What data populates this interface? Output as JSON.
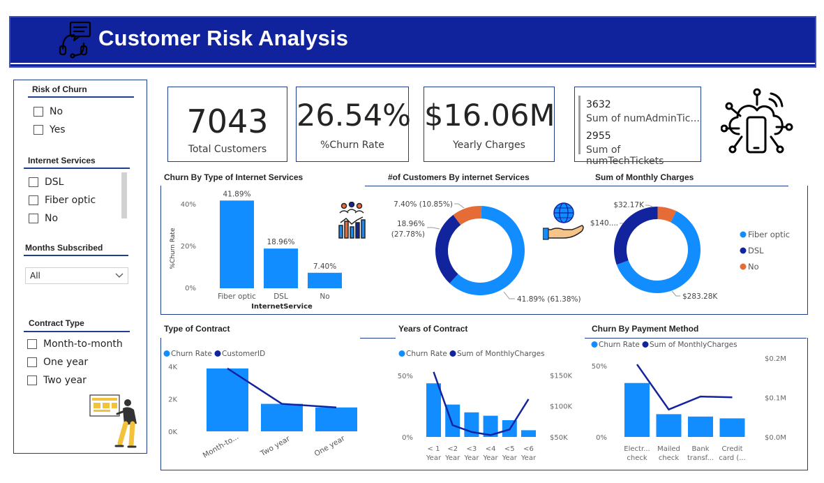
{
  "header": {
    "title": "Customer Risk Analysis",
    "bg_color": "#10239c",
    "icon": "support-headset-icon"
  },
  "slicers": {
    "risk_of_churn": {
      "title": "Risk of Churn",
      "options": [
        "No",
        "Yes"
      ]
    },
    "internet_services": {
      "title": "Internet Services",
      "options": [
        "DSL",
        "Fiber optic",
        "No"
      ]
    },
    "months_subscribed": {
      "title": "Months Subscribed",
      "selected": "All"
    },
    "contract_type": {
      "title": "Contract Type",
      "options": [
        "Month-to-month",
        "One year",
        "Two year"
      ]
    }
  },
  "kpis": {
    "total_customers": {
      "value": "7043",
      "label": "Total Customers"
    },
    "churn_rate": {
      "value": "26.54%",
      "label": "%Churn Rate"
    },
    "yearly_charges": {
      "value": "$16.06M",
      "label": "Yearly Charges"
    },
    "tickets": [
      {
        "value": "3632",
        "label": "Sum of numAdminTic..."
      },
      {
        "value": "2955",
        "label": "Sum of numTechTickets"
      }
    ]
  },
  "colors": {
    "primary": "#118dff",
    "secondary": "#12239e",
    "tertiary": "#e66c37",
    "border": "#1c3e8c"
  },
  "icons": {
    "cloud": "cloud-network-icon",
    "analytics": "analytics-team-icon",
    "globe_hand": "globe-hand-icon",
    "person": "person-pointing-icon"
  },
  "chart_data": [
    {
      "id": "churn_by_internet",
      "type": "bar",
      "title": "Churn By Type of Internet Services",
      "xlabel": "InternetService",
      "ylabel": "%Churn Rate",
      "categories": [
        "Fiber optic",
        "DSL",
        "No"
      ],
      "values": [
        41.89,
        18.96,
        7.4
      ],
      "data_labels": [
        "41.89%",
        "18.96%",
        "7.40%"
      ],
      "y_ticks": [
        "0%",
        "20%",
        "40%"
      ],
      "ylim": [
        0,
        45
      ]
    },
    {
      "id": "customers_by_internet",
      "type": "pie",
      "donut": true,
      "title": "#of Customers By internet Services",
      "slices": [
        {
          "name": "Fiber optic",
          "value": 41.89,
          "share": 61.38,
          "label": "41.89% (61.38%)"
        },
        {
          "name": "DSL",
          "value": 18.96,
          "share": 27.78,
          "label": "18.96% (27.78%)"
        },
        {
          "name": "No",
          "value": 7.4,
          "share": 10.85,
          "label": "7.40% (10.85%)"
        }
      ]
    },
    {
      "id": "monthly_charges",
      "type": "pie",
      "donut": true,
      "title": "Sum of Monthly Charges",
      "slices": [
        {
          "name": "Fiber optic",
          "value": 283.28,
          "label": "$283.28K"
        },
        {
          "name": "DSL",
          "value": 140.0,
          "label": "$140...."
        },
        {
          "name": "No",
          "value": 32.17,
          "label": "$32.17K"
        }
      ],
      "legend": [
        "Fiber optic",
        "DSL",
        "No"
      ],
      "legend_position": "right"
    },
    {
      "id": "type_of_contract",
      "type": "bar",
      "title": "Type of Contract",
      "categories": [
        "Month-to...",
        "Two year",
        "One year"
      ],
      "series": [
        {
          "name": "Churn Rate",
          "kind": "bar",
          "values": [
            3875,
            1695,
            1473
          ]
        },
        {
          "name": "CustomerID",
          "kind": "line",
          "values": [
            3875,
            1695,
            1473
          ]
        }
      ],
      "y_ticks": [
        "0K",
        "2K",
        "4K"
      ],
      "ylim": [
        0,
        4300
      ],
      "legend_position": "top-left"
    },
    {
      "id": "years_of_contract",
      "type": "bar",
      "title": "Years of Contract",
      "categories": [
        "< 1\nYear",
        "<2\nYear",
        "<3\nYear",
        "<4\nYear",
        "<5\nYear",
        "<6\nYear"
      ],
      "series": [
        {
          "name": "Churn Rate",
          "kind": "bar",
          "values": [
            48,
            29,
            22,
            19,
            15,
            6
          ]
        },
        {
          "name": "Sum of MonthlyCharges",
          "kind": "line",
          "values": [
            155,
            69,
            58,
            53,
            62,
            111
          ]
        }
      ],
      "y_ticks_left": [
        "0%",
        "50%"
      ],
      "y_ticks_right": [
        "$50K",
        "$100K",
        "$150K"
      ],
      "ylim_left": [
        0,
        60
      ],
      "ylim_right": [
        50,
        165
      ],
      "legend_position": "top-left"
    },
    {
      "id": "churn_by_payment",
      "type": "bar",
      "title": "Churn By Payment Method",
      "categories": [
        "Electr...\ncheck",
        "Mailed\ncheck",
        "Bank\ntransf...",
        "Credit\ncard (..."
      ],
      "series": [
        {
          "name": "Churn Rate",
          "kind": "bar",
          "values": [
            45,
            19,
            17,
            15.5
          ]
        },
        {
          "name": "Sum of MonthlyCharges",
          "kind": "line",
          "values": [
            0.185,
            0.07,
            0.103,
            0.101
          ]
        }
      ],
      "y_ticks_left": [
        "0%",
        "50%"
      ],
      "y_ticks_right": [
        "$0.0M",
        "$0.1M",
        "$0.2M"
      ],
      "ylim_left": [
        0,
        60
      ],
      "ylim_right": [
        0,
        0.21
      ],
      "legend_position": "top-left"
    }
  ]
}
